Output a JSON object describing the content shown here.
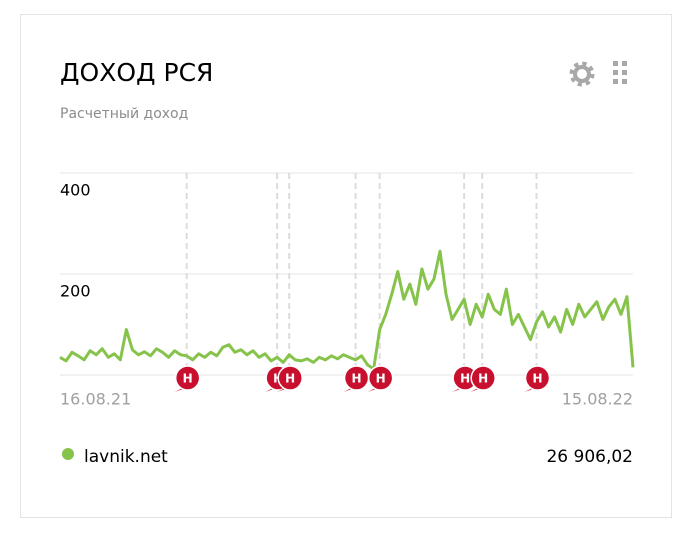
{
  "chart_data": {
    "type": "line",
    "title": "ДОХОД РСЯ",
    "subtitle": "Расчетный доход",
    "categories": [
      "16.08.21",
      null,
      null,
      null,
      null,
      null,
      null,
      null,
      null,
      null,
      null,
      null,
      null,
      null,
      null,
      null,
      null,
      null,
      null,
      null,
      null,
      null,
      null,
      null,
      null,
      null,
      null,
      null,
      null,
      null,
      null,
      null,
      null,
      null,
      null,
      null,
      null,
      null,
      null,
      null,
      null,
      null,
      null,
      null,
      null,
      null,
      null,
      null,
      null,
      null,
      null,
      null,
      null,
      null,
      null,
      null,
      null,
      null,
      null,
      null,
      null,
      null,
      null,
      null,
      null,
      null,
      null,
      null,
      null,
      null,
      null,
      null,
      null,
      null,
      null,
      null,
      null,
      null,
      null,
      null,
      null,
      null,
      null,
      null,
      null,
      null,
      null,
      null,
      null,
      null,
      null,
      null,
      null,
      null,
      null,
      "15.08.22"
    ],
    "series": [
      {
        "name": "lavnik.net",
        "color": "#86c34b",
        "values": [
          35,
          28,
          45,
          38,
          30,
          48,
          40,
          52,
          35,
          42,
          30,
          90,
          50,
          40,
          46,
          38,
          52,
          45,
          35,
          48,
          40,
          38,
          30,
          42,
          35,
          45,
          38,
          55,
          60,
          45,
          50,
          40,
          48,
          35,
          42,
          28,
          35,
          25,
          40,
          30,
          28,
          32,
          25,
          35,
          30,
          38,
          32,
          40,
          35,
          30,
          38,
          20,
          12,
          90,
          120,
          160,
          205,
          150,
          180,
          140,
          210,
          170,
          190,
          245,
          160,
          110,
          130,
          150,
          100,
          140,
          115,
          160,
          130,
          120,
          170,
          100,
          120,
          95,
          70,
          105,
          125,
          95,
          115,
          85,
          130,
          100,
          140,
          115,
          130,
          145,
          110,
          135,
          150,
          120,
          155,
          15
        ]
      }
    ],
    "total": {
      "value": 26906.02,
      "label": "26 906,02"
    },
    "markers": [
      {
        "at": 21,
        "label": "Н"
      },
      {
        "at": 36,
        "label": "Н"
      },
      {
        "at": 38,
        "label": "Н"
      },
      {
        "at": 49,
        "label": "Н"
      },
      {
        "at": 53,
        "label": "Н"
      },
      {
        "at": 67,
        "label": "Н"
      },
      {
        "at": 70,
        "label": "Н"
      },
      {
        "at": 79,
        "label": "Н"
      }
    ],
    "ylim": [
      0,
      400
    ],
    "yticks": [
      200,
      400
    ],
    "grid": true
  }
}
